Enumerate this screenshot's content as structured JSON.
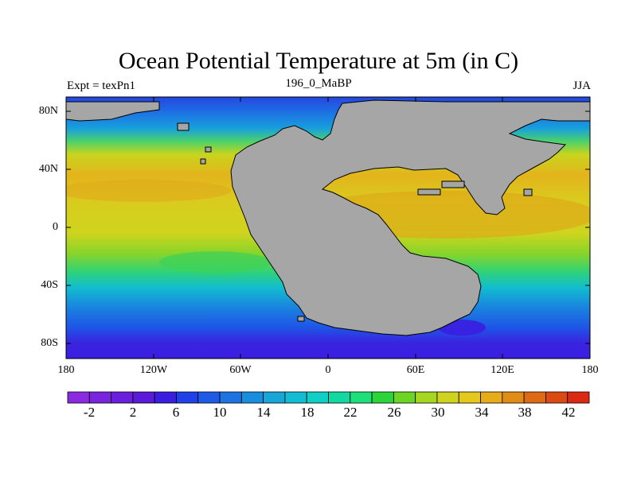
{
  "title": "Ocean Potential Temperature at 5m (in C)",
  "left_label": "Expt = texPn1",
  "center_label": "196_0_MaBP",
  "right_label": "JJA",
  "lat_ticks": [
    "80N",
    "40N",
    "0",
    "40S",
    "80S"
  ],
  "lon_ticks": [
    "180",
    "120W",
    "60W",
    "0",
    "60E",
    "120E",
    "180"
  ],
  "colorbar": {
    "labels": [
      "-2",
      "2",
      "6",
      "10",
      "14",
      "18",
      "22",
      "26",
      "30",
      "34",
      "38",
      "42"
    ],
    "colors": [
      "#8a2be2",
      "#7a24e0",
      "#6a1fdc",
      "#5a1ad8",
      "#3a1ee0",
      "#2040e8",
      "#1e5ae6",
      "#1c74e2",
      "#1a8ede",
      "#16a6d8",
      "#12bcd2",
      "#10cfc4",
      "#14d8a2",
      "#1ee07a",
      "#2ad43a",
      "#6cd422",
      "#a6d620",
      "#cfd21e",
      "#e6c81c",
      "#e6ac1a",
      "#e28c18",
      "#de6a16",
      "#dc4a14",
      "#dc2a12"
    ]
  },
  "land_color": "#a6a6a6"
}
